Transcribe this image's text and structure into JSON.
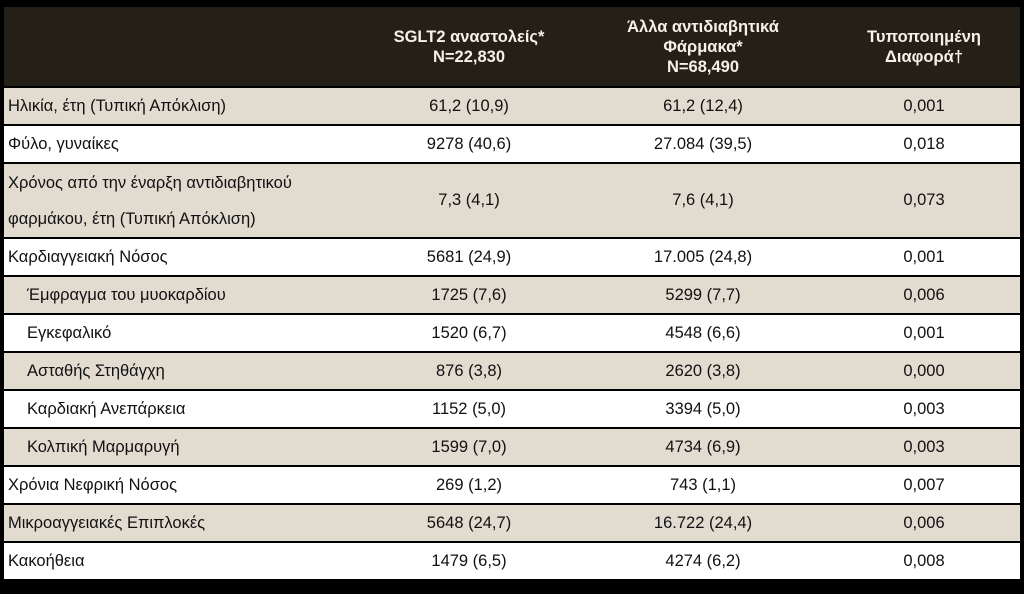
{
  "header": {
    "col0": "",
    "col1": [
      "SGLT2 αναστολείς*",
      "N=22,830"
    ],
    "col2": [
      "Άλλα αντιδιαβητικά",
      "Φάρμακα*",
      "N=68,490"
    ],
    "col3": [
      "Τυποποιημένη",
      "Διαφορά†"
    ]
  },
  "rows": [
    {
      "label": "Ηλικία, έτη (Τυπική Απόκλιση)",
      "sglt2": "61,2 (10,9)",
      "other": "61,2 (12,4)",
      "diff": "0,001"
    },
    {
      "label": "Φύλο, γυναίκες",
      "sglt2": "9278 (40,6)",
      "other": "27.084 (39,5)",
      "diff": "0,018"
    },
    {
      "label_lines": [
        "Χρόνος από την έναρξη αντιδιαβητικού",
        "φαρμάκου, έτη (Τυπική Απόκλιση)"
      ],
      "sglt2": "7,3 (4,1)",
      "other": "7,6 (4,1)",
      "diff": "0,073"
    },
    {
      "label": "Καρδιαγγειακή Νόσος",
      "sglt2": "5681 (24,9)",
      "other": "17.005 (24,8)",
      "diff": "0,001"
    },
    {
      "label": "Έμφραγμα του μυοκαρδίου",
      "sglt2": "1725 (7,6)",
      "other": "5299 (7,7)",
      "diff": "0,006"
    },
    {
      "label": "Εγκεφαλικό",
      "sglt2": "1520 (6,7)",
      "other": "4548 (6,6)",
      "diff": "0,001"
    },
    {
      "label": "Ασταθής Στηθάγχη",
      "sglt2": "876 (3,8)",
      "other": "2620 (3,8)",
      "diff": "0,000"
    },
    {
      "label": "Καρδιακή Ανεπάρκεια",
      "sglt2": "1152 (5,0)",
      "other": "3394 (5,0)",
      "diff": "0,003"
    },
    {
      "label": "Κολπική Μαρμαρυγή",
      "sglt2": "1599 (7,0)",
      "other": "4734 (6,9)",
      "diff": "0,003"
    },
    {
      "label": "Χρόνια Νεφρική Νόσος",
      "sglt2": "269 (1,2)",
      "other": "743 (1,1)",
      "diff": "0,007"
    },
    {
      "label": "Μικροαγγειακές Επιπλοκές",
      "sglt2": "5648 (24,7)",
      "other": "16.722 (24,4)",
      "diff": "0,006"
    },
    {
      "label": "Κακοήθεια",
      "sglt2": "1479 (6,5)",
      "other": "4274 (6,2)",
      "diff": "0,008"
    }
  ]
}
